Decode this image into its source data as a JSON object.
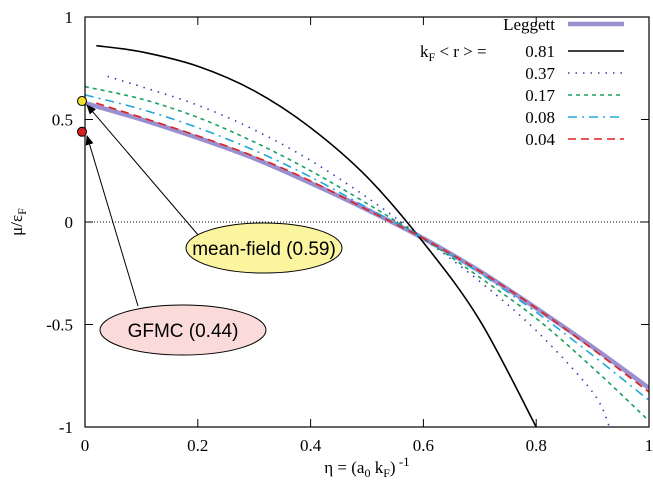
{
  "chart_data": {
    "type": "line",
    "xlabel": "η = (a",
    "xlabel_sub": "0",
    "xlabel_mid": " k",
    "xlabel_sub2": "F",
    "xlabel_end": ")",
    "xlabel_sup": " -1",
    "ylabel": "μ/ε",
    "ylabel_sub": "F",
    "xlim": [
      0,
      1
    ],
    "ylim": [
      -1,
      1
    ],
    "xticks": [
      "0",
      "0.2",
      "0.4",
      "0.6",
      "0.8",
      "1"
    ],
    "yticks": [
      "-1",
      "-0.5",
      "0",
      "0.5",
      "1"
    ],
    "xtick_values": [
      0,
      0.2,
      0.4,
      0.6,
      0.8,
      1
    ],
    "ytick_values": [
      -1,
      -0.5,
      0,
      0.5,
      1
    ],
    "legend_header": "k",
    "legend_header_sub": "F",
    "legend_header_rest": " < r > =",
    "series": [
      {
        "name": "Leggett",
        "color": "#9a90d0",
        "dash": "",
        "x": [
          0,
          0.1,
          0.2,
          0.3,
          0.4,
          0.5,
          0.6,
          0.7,
          0.8,
          0.9,
          1.0
        ],
        "y": [
          0.58,
          0.5,
          0.41,
          0.31,
          0.19,
          0.06,
          -0.08,
          -0.24,
          -0.42,
          -0.61,
          -0.81
        ]
      },
      {
        "name": "0.81",
        "color": "#000000",
        "dash": "",
        "x": [
          0.02,
          0.1,
          0.2,
          0.3,
          0.4,
          0.5,
          0.6,
          0.7,
          0.8
        ],
        "y": [
          0.86,
          0.83,
          0.76,
          0.64,
          0.46,
          0.22,
          -0.1,
          -0.48,
          -1.0
        ]
      },
      {
        "name": "0.37",
        "color": "#3a3aa8",
        "dash": "1.5,6",
        "x": [
          0.04,
          0.1,
          0.2,
          0.3,
          0.4,
          0.5,
          0.6,
          0.7,
          0.8,
          0.9,
          0.93
        ],
        "y": [
          0.71,
          0.66,
          0.57,
          0.45,
          0.3,
          0.12,
          -0.08,
          -0.29,
          -0.53,
          -0.83,
          -1.0
        ]
      },
      {
        "name": "0.17",
        "color": "#1aa060",
        "dash": "4,4",
        "x": [
          0.0,
          0.1,
          0.2,
          0.3,
          0.4,
          0.5,
          0.6,
          0.7,
          0.8,
          0.9,
          1.0
        ],
        "y": [
          0.66,
          0.6,
          0.51,
          0.39,
          0.25,
          0.09,
          -0.08,
          -0.27,
          -0.47,
          -0.71,
          -0.97
        ]
      },
      {
        "name": "0.08",
        "color": "#20a8d8",
        "dash": "9,5,2,5",
        "x": [
          0.0,
          0.1,
          0.2,
          0.3,
          0.4,
          0.5,
          0.6,
          0.7,
          0.8,
          0.9,
          1.0
        ],
        "y": [
          0.62,
          0.55,
          0.46,
          0.35,
          0.22,
          0.07,
          -0.08,
          -0.25,
          -0.44,
          -0.65,
          -0.87
        ]
      },
      {
        "name": "0.04",
        "color": "#e02020",
        "dash": "8,5",
        "x": [
          0.02,
          0.1,
          0.2,
          0.3,
          0.4,
          0.5,
          0.6,
          0.7,
          0.8,
          0.9,
          1.0
        ],
        "y": [
          0.58,
          0.51,
          0.42,
          0.32,
          0.2,
          0.06,
          -0.08,
          -0.24,
          -0.42,
          -0.62,
          -0.83
        ]
      }
    ],
    "reference_line": {
      "y": 0,
      "style": "dotted",
      "color": "#000000"
    },
    "points": [
      {
        "name": "mean-field",
        "x": 0,
        "y": 0.59,
        "color": "#f2e030"
      },
      {
        "name": "GFMC",
        "x": 0,
        "y": 0.44,
        "color": "#d42020"
      }
    ],
    "annotations": [
      {
        "text": "mean-field (0.59)",
        "target_x": 0,
        "target_y": 0.59,
        "fill": "#fbf5a0"
      },
      {
        "text": "GFMC (0.44)",
        "target_x": 0,
        "target_y": 0.44,
        "fill": "#fbdada"
      }
    ],
    "legend_position": "top-right",
    "grid": false
  }
}
